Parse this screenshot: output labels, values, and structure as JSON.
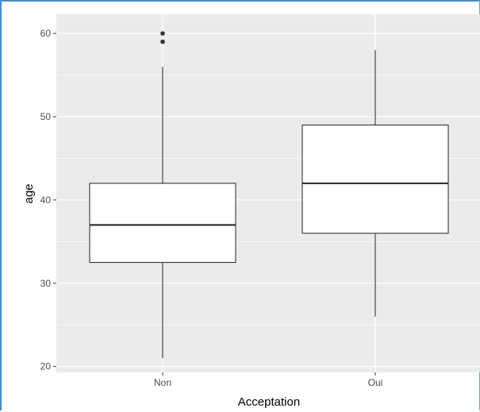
{
  "chart_data": {
    "type": "box",
    "xlabel": "Acceptation",
    "ylabel": "age",
    "categories": [
      "Non",
      "Oui"
    ],
    "ylim": [
      19.3,
      62.3
    ],
    "yticks": [
      20,
      30,
      40,
      50,
      60
    ],
    "grid": true,
    "panel_background": "#ebebeb",
    "grid_color": "#ffffff",
    "box_fill": "#ffffff",
    "line_color": "#333333",
    "boxes": [
      {
        "category": "Non",
        "min": 21,
        "q1": 32.5,
        "median": 37,
        "q3": 42,
        "max": 56,
        "outliers": [
          59,
          60
        ]
      },
      {
        "category": "Oui",
        "min": 26,
        "q1": 36,
        "median": 42,
        "q3": 49,
        "max": 58,
        "outliers": []
      }
    ]
  }
}
